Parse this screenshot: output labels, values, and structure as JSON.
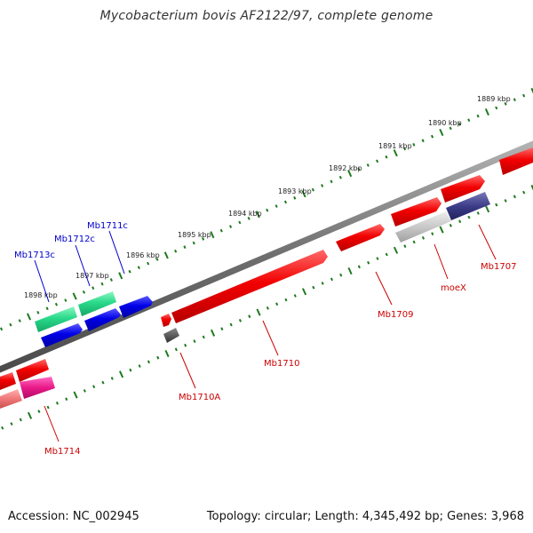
{
  "title": "Mycobacterium bovis AF2122/97, complete genome",
  "footer": {
    "accession": "Accession: NC_002945",
    "summary": "Topology: circular; Length: 4,345,492 bp; Genes: 3,968"
  },
  "colors": {
    "backbone": "#7d7d7d",
    "tick": "#1e7a1e",
    "label_blue": "#0000cc",
    "label_red": "#cc0000",
    "scale_text": "#222222"
  },
  "scale_labels": [
    "1889 kbp",
    "1890 kbp",
    "1891 kbp",
    "1892 kbp",
    "1893 kbp",
    "1894 kbp",
    "1895 kbp",
    "1896 kbp",
    "1897 kbp",
    "1898 kbp"
  ],
  "genes": [
    {
      "id": "Mb1707",
      "strand": "+",
      "color": "#e80000",
      "labeled": true
    },
    {
      "id": "moeX",
      "strand": "-",
      "color": "#c8c8c8",
      "labeled": true
    },
    {
      "id": "Mb1709",
      "strand": "+",
      "color": "#e80000",
      "labeled": true
    },
    {
      "id": "Mb1710",
      "strand": "+",
      "color": "#e80000",
      "labeled": true
    },
    {
      "id": "Mb1710A",
      "strand": "-",
      "color": "#555555",
      "labeled": true
    },
    {
      "id": "Mb1711c",
      "strand": "-",
      "color": "#0a0adc",
      "labeled": true
    },
    {
      "id": "Mb1712c",
      "strand": "-",
      "color": "#0a0adc",
      "labeled": true
    },
    {
      "id": "Mb1713c",
      "strand": "-",
      "color": "#0a0adc",
      "labeled": true
    },
    {
      "id": "Mb1714",
      "strand": "+",
      "color": "#e81888",
      "labeled": true
    }
  ]
}
